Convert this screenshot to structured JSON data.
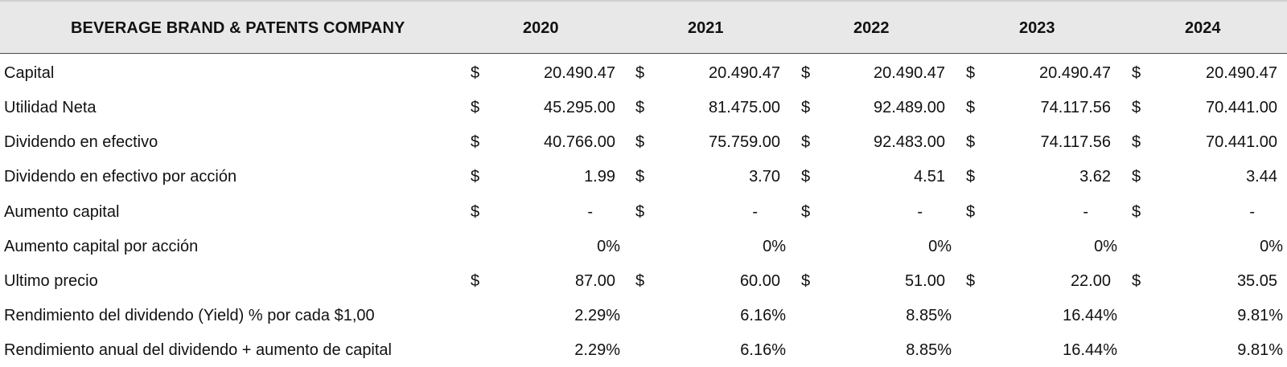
{
  "header": {
    "title": "BEVERAGE BRAND & PATENTS COMPANY",
    "years": [
      "2020",
      "2021",
      "2022",
      "2023",
      "2024"
    ]
  },
  "rows": [
    {
      "label": "Capital",
      "currency": true,
      "values": [
        "20.490.47",
        "20.490.47",
        "20.490.47",
        "20.490.47",
        "20.490.47"
      ]
    },
    {
      "label": "Utilidad Neta",
      "currency": true,
      "values": [
        "45.295.00",
        "81.475.00",
        "92.489.00",
        "74.117.56",
        "70.441.00"
      ]
    },
    {
      "label": "Dividendo en efectivo",
      "currency": true,
      "values": [
        "40.766.00",
        "75.759.00",
        "92.483.00",
        "74.117.56",
        "70.441.00"
      ]
    },
    {
      "label": "Dividendo en efectivo por acción",
      "currency": true,
      "values": [
        "1.99",
        "3.70",
        "4.51",
        "3.62",
        "3.44"
      ]
    },
    {
      "label": "Aumento capital",
      "currency": true,
      "values": [
        "-",
        "-",
        "-",
        "-",
        "-"
      ]
    },
    {
      "label": "Aumento capital por acción",
      "currency": false,
      "values": [
        "0%",
        "0%",
        "0%",
        "0%",
        "0%"
      ]
    },
    {
      "label": "Ultimo precio",
      "currency": true,
      "values": [
        "87.00",
        "60.00",
        "51.00",
        "22.00",
        "35.05"
      ]
    },
    {
      "label": "Rendimiento del dividendo (Yield) % por cada $1,00",
      "currency": false,
      "values": [
        "2.29%",
        "6.16%",
        "8.85%",
        "16.44%",
        "9.81%"
      ]
    },
    {
      "label": "Rendimiento anual del dividendo + aumento de capital",
      "currency": false,
      "values": [
        "2.29%",
        "6.16%",
        "8.85%",
        "16.44%",
        "9.81%"
      ]
    }
  ],
  "currency_symbol": "$"
}
